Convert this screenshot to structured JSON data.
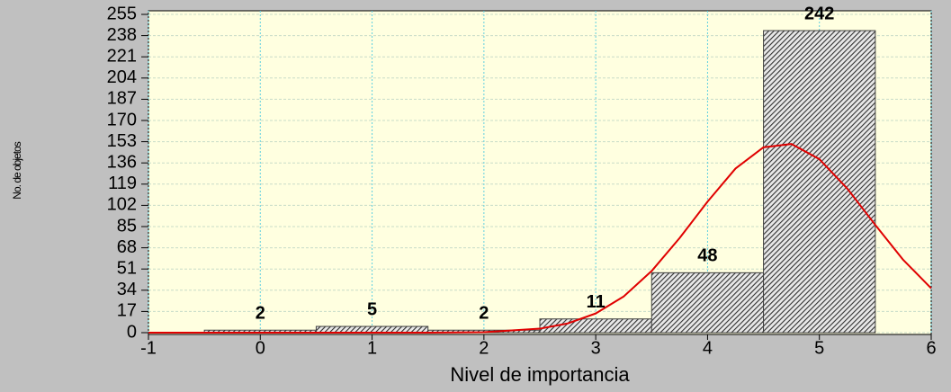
{
  "chart_data": {
    "type": "histogram",
    "xlabel": "Nivel de importancia",
    "ylabel": "No. de objetos",
    "bins": [
      -0.5,
      0.5,
      1.5,
      2.5,
      3.5,
      4.5,
      5.5
    ],
    "values": [
      2,
      5,
      2,
      11,
      48,
      242
    ],
    "color": "#404040",
    "xlim": [
      -1,
      6
    ],
    "xticks": [
      -1,
      0,
      1,
      2,
      3,
      4,
      5,
      6
    ],
    "ylim": [
      0,
      255
    ],
    "yticks": [
      0,
      17,
      34,
      51,
      68,
      85,
      102,
      119,
      136,
      153,
      170,
      187,
      204,
      221,
      238,
      255
    ],
    "grid": true,
    "curve": {
      "color": "#e00000",
      "x": [
        -1,
        0,
        1,
        1.5,
        2,
        2.5,
        2.75,
        3,
        3.25,
        3.5,
        3.75,
        4,
        4.25,
        4.5,
        4.75,
        5,
        5.25,
        5.5,
        5.75,
        6
      ],
      "values": [
        0,
        0,
        0,
        0,
        0.4,
        3.2,
        7.4,
        15.4,
        29,
        49.4,
        75.8,
        105,
        131.5,
        148.5,
        151.2,
        139,
        115.4,
        86.3,
        58.3,
        35.5
      ]
    }
  }
}
